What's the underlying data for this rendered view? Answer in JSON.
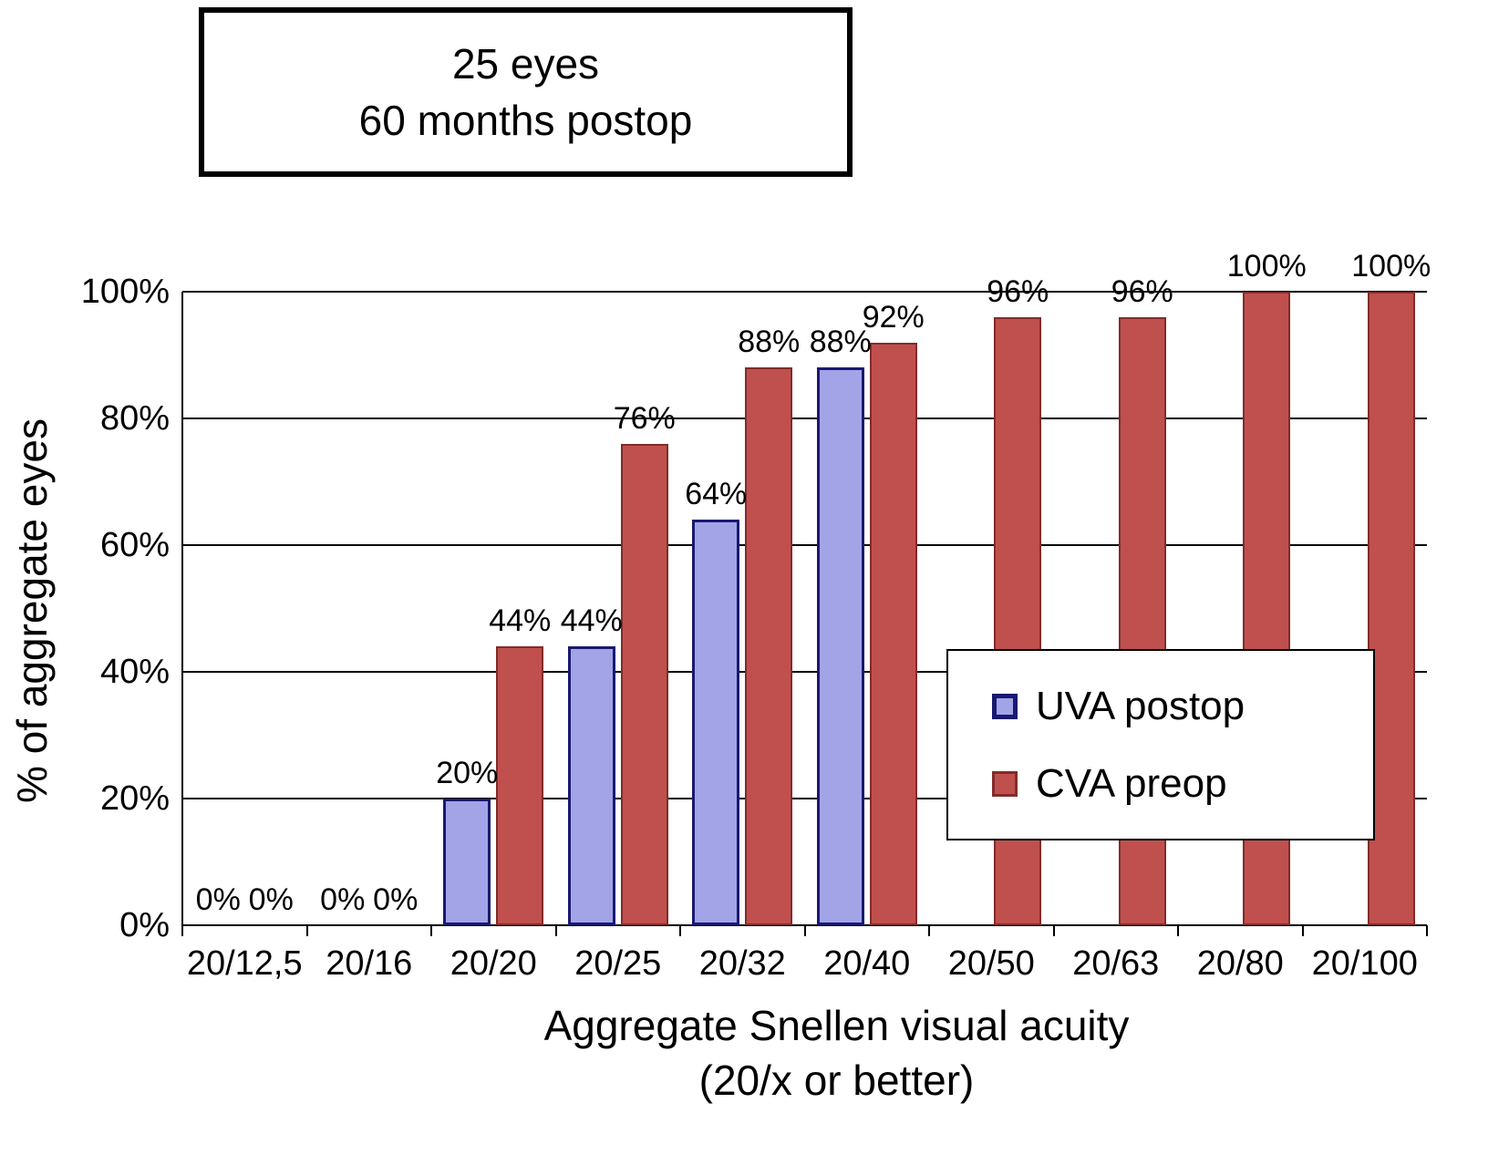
{
  "chart_data": {
    "type": "bar",
    "title": "25 eyes 60 months postop",
    "title_lines": [
      "25 eyes",
      "60 months postop"
    ],
    "categories": [
      "20/12,5",
      "20/16",
      "20/20",
      "20/25",
      "20/32",
      "20/40",
      "20/50",
      "20/63",
      "20/80",
      "20/100"
    ],
    "series": [
      {
        "name": "UVA postop",
        "color": "#a3a3e8",
        "border_color": "#191970",
        "values": [
          0,
          0,
          20,
          44,
          64,
          88,
          null,
          null,
          null,
          null
        ]
      },
      {
        "name": "CVA preop",
        "color": "#c0504d",
        "border_color": "#802c2a",
        "values": [
          0,
          0,
          44,
          76,
          88,
          92,
          96,
          96,
          100,
          100
        ]
      }
    ],
    "xlabel": "Aggregate Snellen visual acuity (20/x or better)",
    "xlabel_lines": [
      "Aggregate Snellen visual acuity",
      "(20/x or better)"
    ],
    "ylabel": "% of aggregate eyes",
    "ylim": [
      0,
      100
    ],
    "yticks": [
      "0%",
      "20%",
      "40%",
      "60%",
      "80%",
      "100%"
    ],
    "grid": true,
    "data_label_suffix": "%",
    "legend_position": "inside-right",
    "axis_color": "#000000",
    "background_color": "#ffffff"
  }
}
